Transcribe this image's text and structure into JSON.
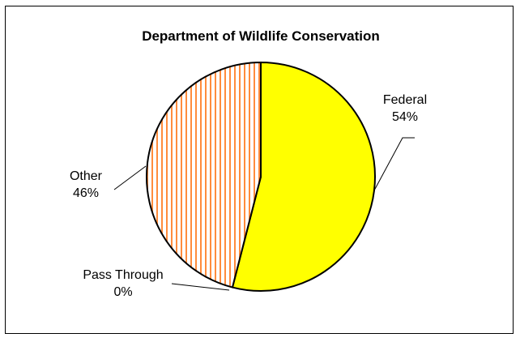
{
  "chart_data": {
    "type": "pie",
    "title": "Department of Wildlife Conservation",
    "slices": [
      {
        "category": "Federal",
        "percent_label": "54%",
        "value": 54,
        "color": "#ffff00",
        "pattern": "solid"
      },
      {
        "category": "Pass Through",
        "percent_label": "0%",
        "value": 0,
        "color": "#ffffff",
        "pattern": "solid"
      },
      {
        "category": "Other",
        "percent_label": "46%",
        "value": 46,
        "color": "#ff8c3c",
        "pattern": "vertical-stripes"
      }
    ],
    "legend": "none",
    "data_labels": "outside-with-leader-lines"
  }
}
